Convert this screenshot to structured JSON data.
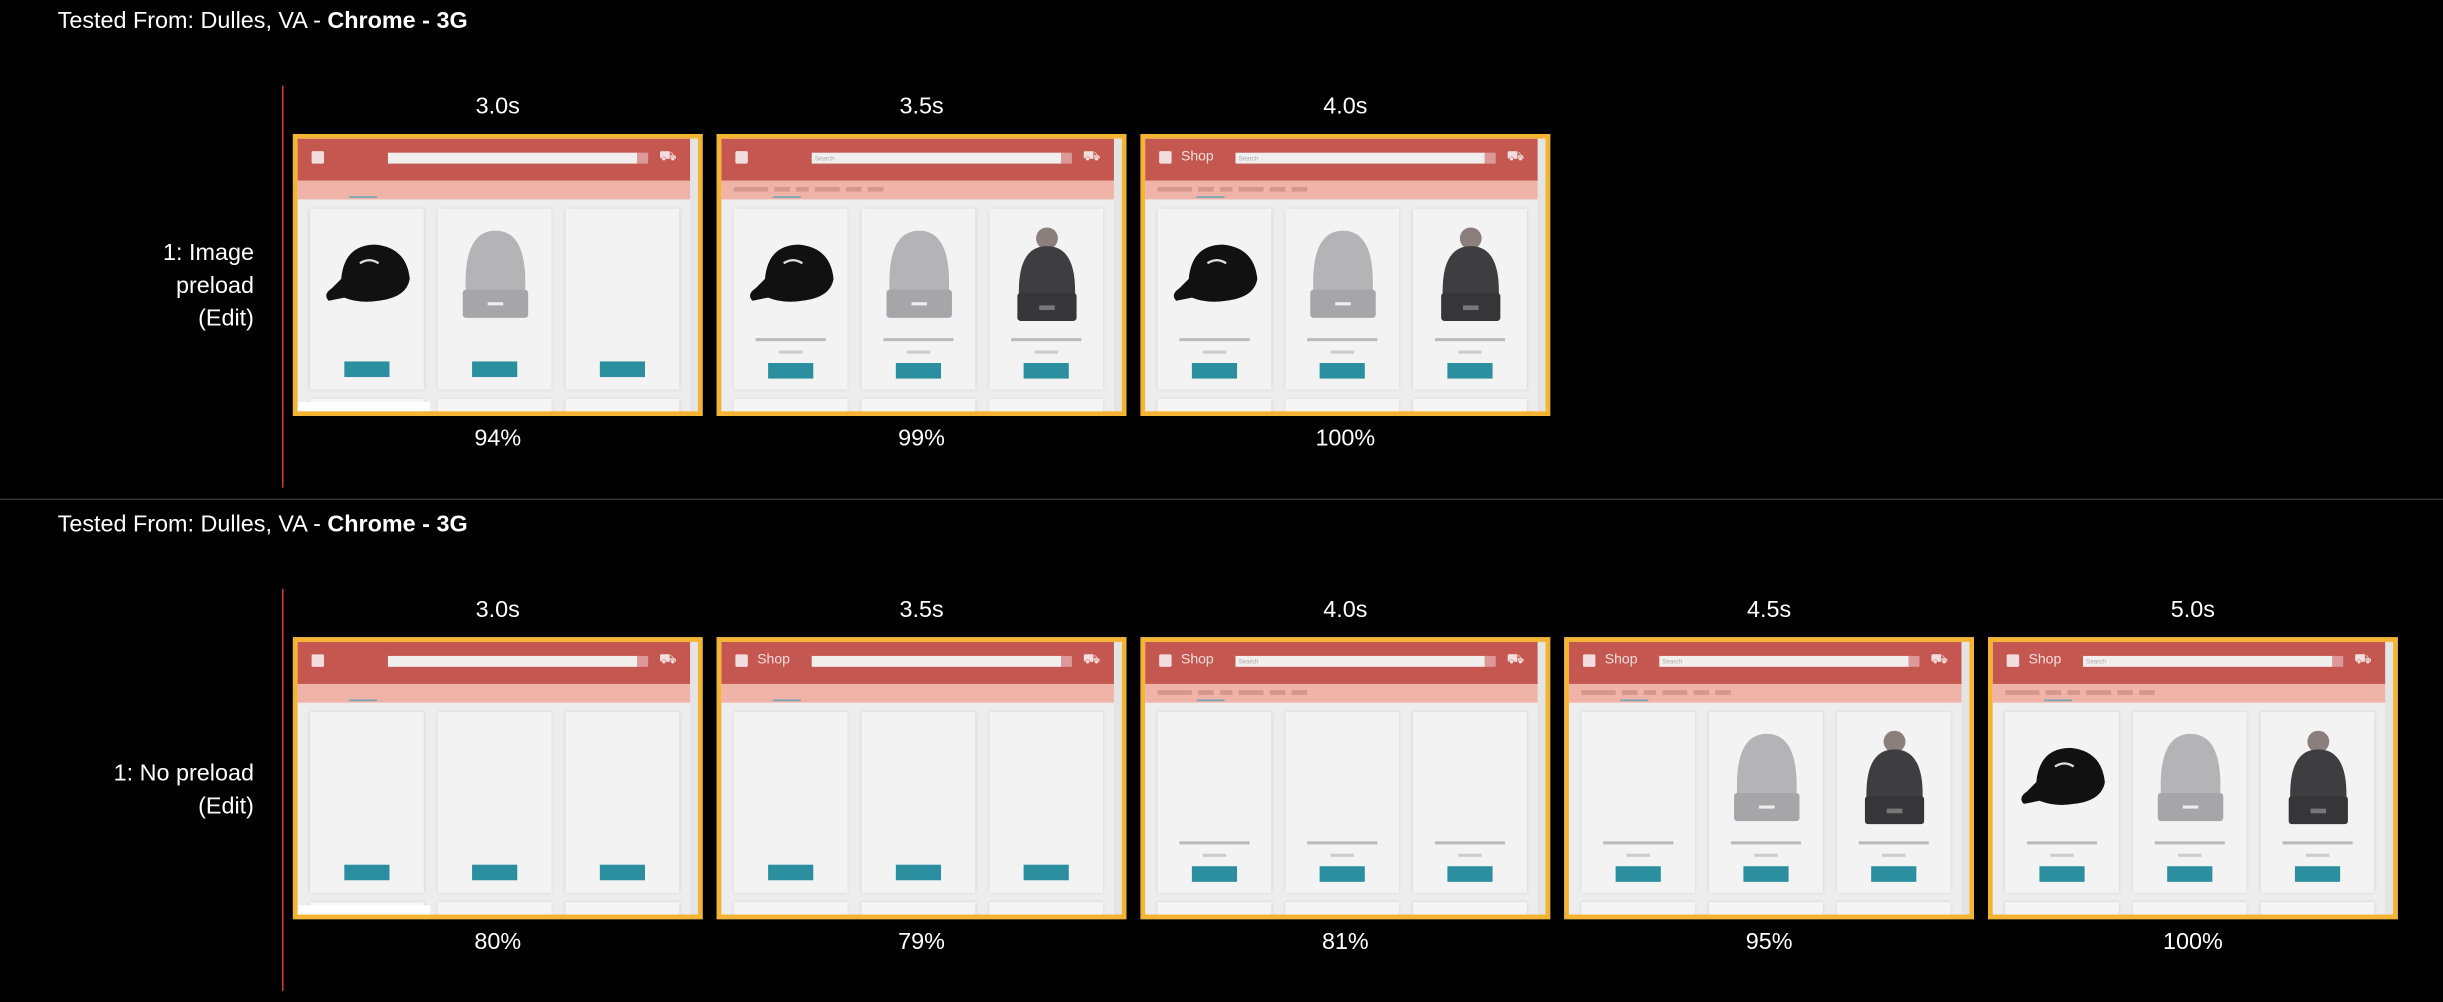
{
  "colors": {
    "frame_border": "#f4b331",
    "marker_line": "#d03a2a",
    "header_red": "#c4574f",
    "nav_pink": "#f0b3a8",
    "button_teal": "#2b8f9f"
  },
  "tests": [
    {
      "tested_from_prefix": "Tested From: Dulles, VA - ",
      "browser": "Chrome",
      "sep": " - ",
      "connection": "3G",
      "label_line1": "1: Image",
      "label_line2": "preload",
      "edit_link": "(Edit)",
      "frames": [
        {
          "time": "3.0s",
          "visual_complete": "94%",
          "shop_label": false,
          "nav": false,
          "products": [
            "cap",
            "beanie",
            null
          ],
          "product_text": false,
          "loading_status": true
        },
        {
          "time": "3.5s",
          "visual_complete": "99%",
          "shop_label": false,
          "nav": true,
          "products": [
            "cap",
            "beanie",
            "pom"
          ],
          "product_text": true,
          "loading_status": false
        },
        {
          "time": "4.0s",
          "visual_complete": "100%",
          "shop_label": true,
          "nav": true,
          "products": [
            "cap",
            "beanie",
            "pom"
          ],
          "product_text": true,
          "loading_status": false
        }
      ]
    },
    {
      "tested_from_prefix": "Tested From: Dulles, VA - ",
      "browser": "Chrome",
      "sep": " - ",
      "connection": "3G",
      "label_line1": "1: No preload",
      "label_line2": "",
      "edit_link": "(Edit)",
      "frames": [
        {
          "time": "3.0s",
          "visual_complete": "80%",
          "shop_label": false,
          "nav": false,
          "products": [
            null,
            null,
            null
          ],
          "product_text": false,
          "loading_status": true
        },
        {
          "time": "3.5s",
          "visual_complete": "79%",
          "shop_label": true,
          "nav": false,
          "products": [
            null,
            null,
            null
          ],
          "product_text": false,
          "loading_status": false
        },
        {
          "time": "4.0s",
          "visual_complete": "81%",
          "shop_label": true,
          "nav": true,
          "products": [
            null,
            null,
            null
          ],
          "product_text": true,
          "loading_status": false
        },
        {
          "time": "4.5s",
          "visual_complete": "95%",
          "shop_label": true,
          "nav": true,
          "products": [
            null,
            "beanie",
            "pom"
          ],
          "product_text": true,
          "loading_status": false
        },
        {
          "time": "5.0s",
          "visual_complete": "100%",
          "shop_label": true,
          "nav": true,
          "products": [
            "cap",
            "beanie",
            "pom"
          ],
          "product_text": true,
          "loading_status": false
        }
      ]
    }
  ],
  "thumbnail": {
    "shop": "Shop",
    "search_placeholder": "Search",
    "cart_icon": "cart-icon",
    "bag_icon": "shopping-bag-icon"
  }
}
